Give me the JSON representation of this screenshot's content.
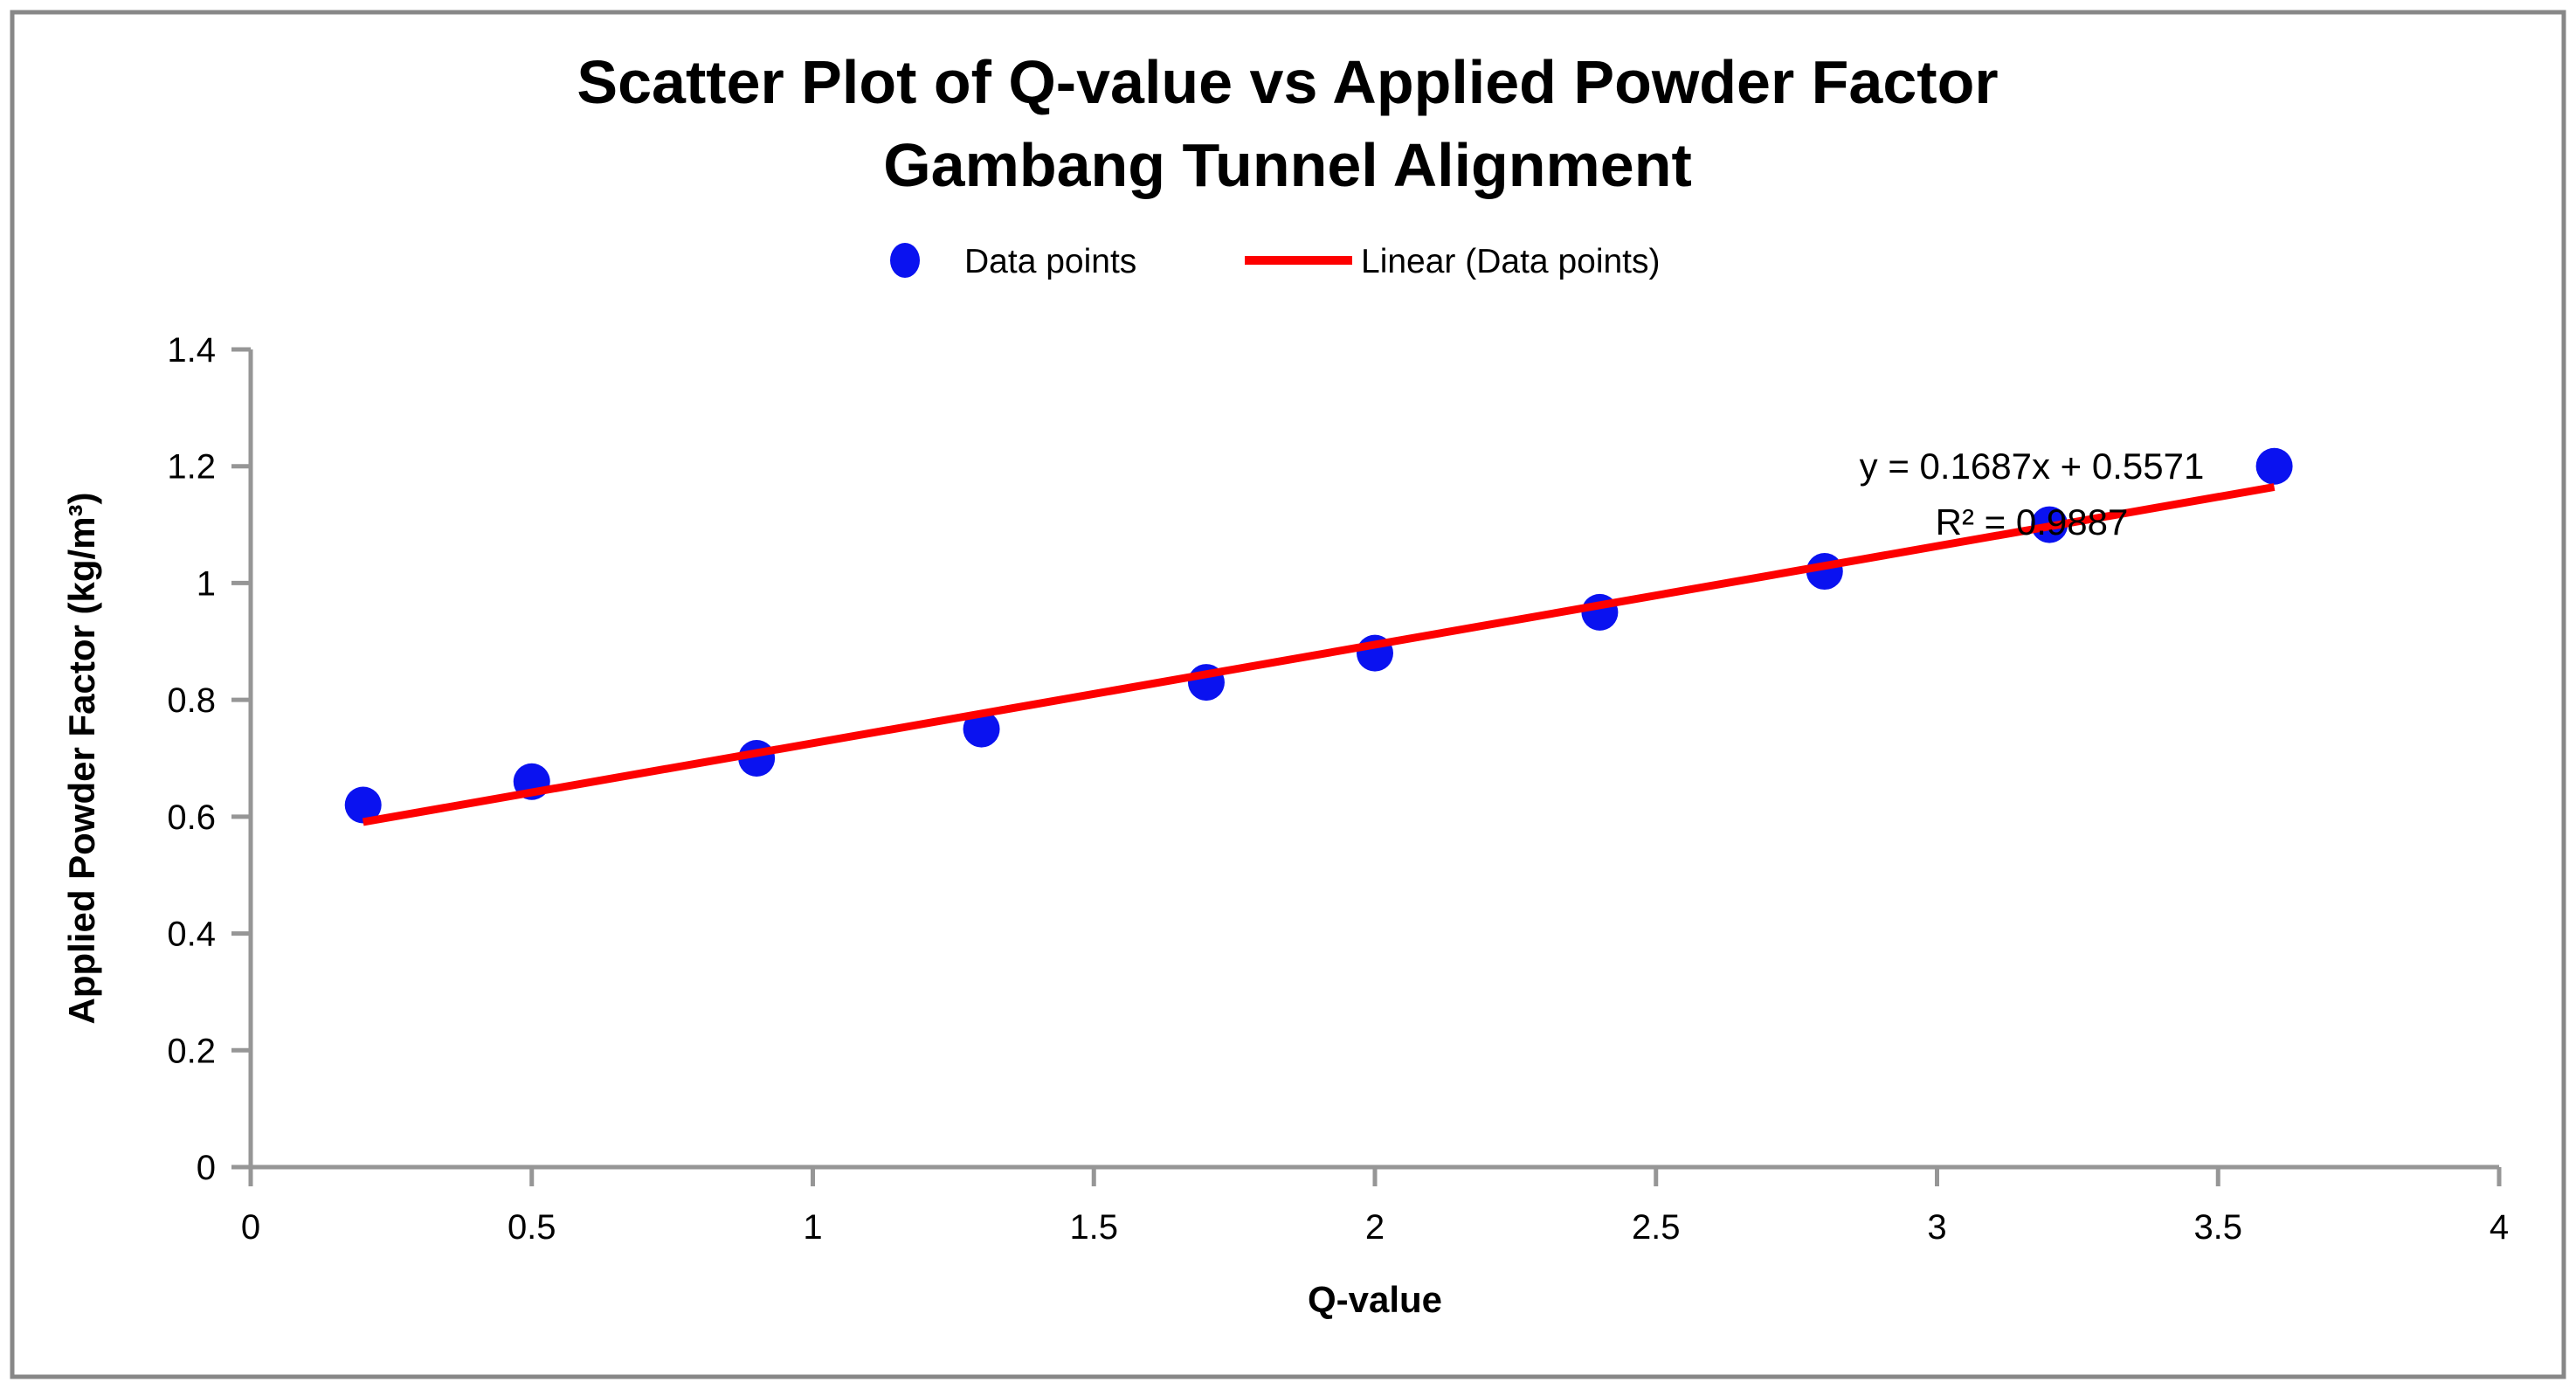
{
  "chart_data": {
    "type": "scatter",
    "title": "Scatter Plot of Q-value vs Applied Powder Factor",
    "subtitle": "Gambang Tunnel Alignment",
    "xlabel": "Q-value",
    "ylabel": "Applied Powder Factor (kg/m³)",
    "xlim": [
      0,
      4
    ],
    "ylim": [
      0,
      1.4
    ],
    "xticks": [
      0,
      0.5,
      1,
      1.5,
      2,
      2.5,
      3,
      3.5,
      4
    ],
    "yticks": [
      0,
      0.2,
      0.4,
      0.6,
      0.8,
      1,
      1.2,
      1.4
    ],
    "grid": false,
    "legend_position": "top-center",
    "series": [
      {
        "name": "Data points",
        "type": "scatter",
        "color": "#0a12f0",
        "points": [
          [
            0.2,
            0.62
          ],
          [
            0.5,
            0.66
          ],
          [
            0.9,
            0.7
          ],
          [
            1.3,
            0.75
          ],
          [
            1.7,
            0.83
          ],
          [
            2,
            0.88
          ],
          [
            2.4,
            0.95
          ],
          [
            2.8,
            1.02
          ],
          [
            3.2,
            1.1
          ],
          [
            3.6,
            1.2
          ]
        ]
      }
    ],
    "trendline": {
      "name": "Linear (Data points)",
      "color": "#fd0000",
      "slope": 0.1687,
      "intercept": 0.5571,
      "r_squared": 0.9887,
      "x_range": [
        0.2,
        3.6
      ],
      "equation_label": "y = 0.1687x + 0.5571",
      "r2_label": "R² = 0.9887"
    }
  },
  "legend": {
    "items": [
      {
        "label": "Data points",
        "marker": "circle-icon",
        "color": "#0a12f0"
      },
      {
        "label": "Linear (Data points)",
        "marker": "line-icon",
        "color": "#fd0000"
      }
    ]
  },
  "colors": {
    "background": "#ffffff",
    "border": "#878787",
    "axis": "#969696",
    "text": "#000000",
    "points": "#0a12f0",
    "trendline": "#fd0000"
  }
}
